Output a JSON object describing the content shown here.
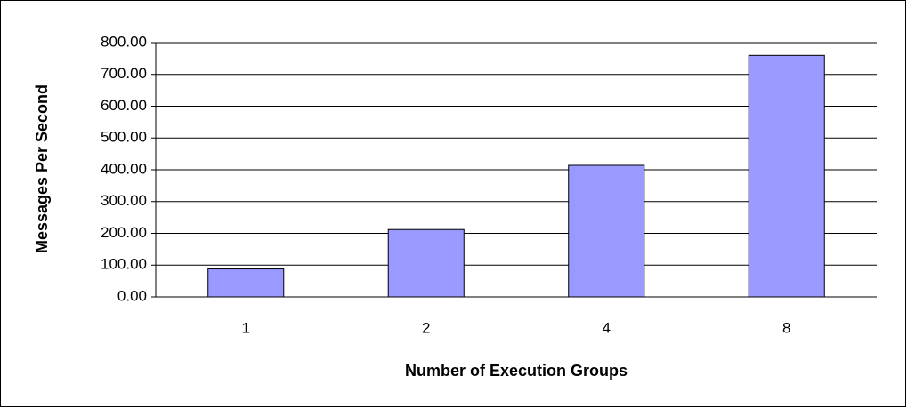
{
  "chart_data": {
    "type": "bar",
    "categories": [
      "1",
      "2",
      "4",
      "8"
    ],
    "values": [
      88,
      212,
      414,
      760
    ],
    "color": "#9999ff",
    "xlabel": "Number of Execution Groups",
    "ylabel": "Messages Per Second",
    "ylim": [
      0,
      800
    ],
    "yticks": [
      {
        "value": 0,
        "label": "0.00"
      },
      {
        "value": 100,
        "label": "100.00"
      },
      {
        "value": 200,
        "label": "200.00"
      },
      {
        "value": 300,
        "label": "300.00"
      },
      {
        "value": 400,
        "label": "400.00"
      },
      {
        "value": 500,
        "label": "500.00"
      },
      {
        "value": 600,
        "label": "600.00"
      },
      {
        "value": 700,
        "label": "700.00"
      },
      {
        "value": 800,
        "label": "800.00"
      }
    ],
    "grid": true
  }
}
